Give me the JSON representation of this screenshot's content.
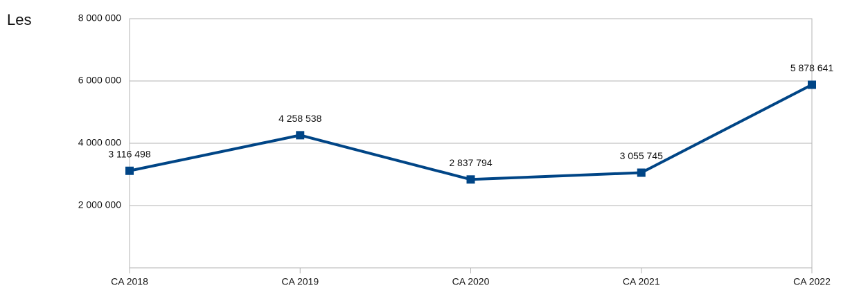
{
  "chart_data": {
    "type": "line",
    "annotation": "Les",
    "categories": [
      "CA 2018",
      "CA 2019",
      "CA 2020",
      "CA 2021",
      "CA 2022"
    ],
    "series": [
      {
        "name": null,
        "color": "#004586",
        "values": [
          3116498,
          4258538,
          2837794,
          3055745,
          5878641
        ],
        "value_labels": [
          "3 116 498",
          "4 258 538",
          "2 837 794",
          "3 055 745",
          "5 878 641"
        ]
      }
    ],
    "ylim": [
      0,
      8000000
    ],
    "yticks": [
      {
        "value": 2000000,
        "label": "2 000 000"
      },
      {
        "value": 4000000,
        "label": "4 000 000"
      },
      {
        "value": 6000000,
        "label": "6 000 000"
      },
      {
        "value": 8000000,
        "label": "8 000 000"
      }
    ],
    "grid": true
  }
}
